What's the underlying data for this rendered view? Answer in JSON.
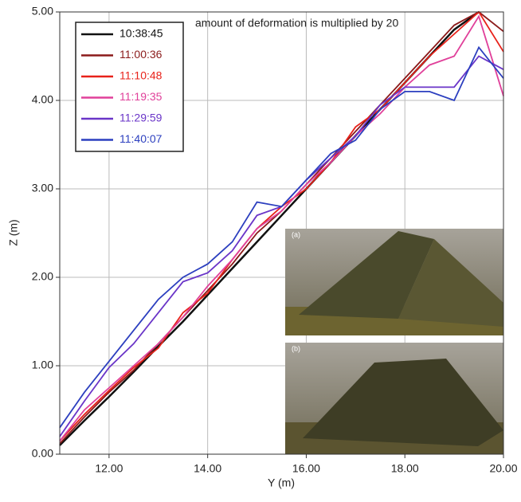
{
  "chart_data": {
    "type": "line",
    "xlabel": "Y (m)",
    "ylabel": "Z (m)",
    "annotation": "amount of deformation is multiplied by 20",
    "photo_labels": [
      "(a)",
      "(b)"
    ],
    "x": [
      11,
      11.5,
      12,
      12.5,
      13,
      13.5,
      14,
      14.5,
      15,
      15.5,
      16,
      16.5,
      17,
      17.5,
      18,
      18.5,
      19,
      19.5,
      20
    ],
    "series": [
      {
        "name": "10:38:45",
        "color": "#111111",
        "values": [
          0.1,
          0.38,
          0.65,
          0.93,
          1.22,
          1.5,
          1.8,
          2.1,
          2.4,
          2.7,
          3.0,
          3.3,
          3.6,
          3.9,
          4.2,
          4.5,
          4.8,
          5.0,
          null
        ]
      },
      {
        "name": "11:00:36",
        "color": "#8b1a1a",
        "values": [
          0.12,
          0.42,
          0.7,
          0.95,
          1.25,
          1.55,
          1.85,
          2.15,
          2.5,
          2.75,
          3.05,
          3.35,
          3.65,
          3.95,
          4.25,
          4.55,
          4.85,
          5.0,
          4.78
        ]
      },
      {
        "name": "11:10:48",
        "color": "#e8221a",
        "values": [
          0.15,
          0.45,
          0.72,
          0.98,
          1.2,
          1.6,
          1.82,
          2.2,
          2.55,
          2.8,
          3.0,
          3.3,
          3.7,
          3.9,
          4.2,
          4.5,
          4.75,
          5.0,
          4.55
        ]
      },
      {
        "name": "11:19:35",
        "color": "#e0409a",
        "values": [
          0.15,
          0.5,
          0.75,
          1.0,
          1.25,
          1.55,
          1.9,
          2.2,
          2.55,
          2.75,
          3.05,
          3.3,
          3.6,
          3.85,
          4.15,
          4.4,
          4.5,
          4.95,
          4.05
        ]
      },
      {
        "name": "11:29:59",
        "color": "#6a35c8",
        "values": [
          0.2,
          0.6,
          0.98,
          1.25,
          1.6,
          1.95,
          2.05,
          2.3,
          2.7,
          2.8,
          3.1,
          3.35,
          3.6,
          3.95,
          4.15,
          4.15,
          4.15,
          4.5,
          4.35
        ]
      },
      {
        "name": "11:40:07",
        "color": "#2c3fbf",
        "values": [
          0.3,
          0.7,
          1.05,
          1.4,
          1.75,
          2.0,
          2.15,
          2.4,
          2.85,
          2.8,
          3.1,
          3.4,
          3.55,
          3.9,
          4.1,
          4.1,
          4.0,
          4.6,
          4.25
        ]
      }
    ],
    "xlim": [
      11,
      20
    ],
    "ylim": [
      0,
      5
    ],
    "xticks": [
      {
        "value": 12,
        "label": "12.00"
      },
      {
        "value": 14,
        "label": "14.00"
      },
      {
        "value": 16,
        "label": "16.00"
      },
      {
        "value": 18,
        "label": "18.00"
      },
      {
        "value": 20,
        "label": "20.00"
      }
    ],
    "yticks": [
      {
        "value": 0,
        "label": "0.00"
      },
      {
        "value": 1,
        "label": "1.00"
      },
      {
        "value": 2,
        "label": "2.00"
      },
      {
        "value": 3,
        "label": "3.00"
      },
      {
        "value": 4,
        "label": "4.00"
      },
      {
        "value": 5,
        "label": "5.00"
      }
    ],
    "grid": true
  }
}
